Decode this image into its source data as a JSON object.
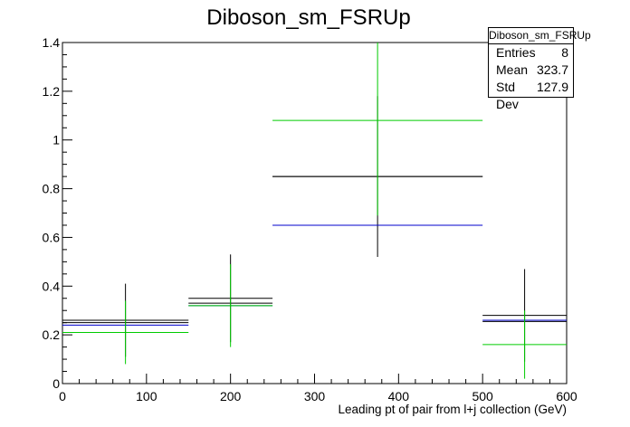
{
  "chart_data": {
    "type": "histogram",
    "title": "Diboson_sm_FSRUp",
    "xlabel": "Leading pt of pair from l+j collection (GeV)",
    "ylabel": "",
    "xlim": [
      0,
      600
    ],
    "ylim": [
      0,
      1.4
    ],
    "x_ticks": [
      0,
      100,
      200,
      300,
      400,
      500,
      600
    ],
    "y_ticks": [
      0,
      0.2,
      0.4,
      0.6,
      0.8,
      1,
      1.2,
      1.4
    ],
    "y_tick_labels": [
      "0",
      "0.2",
      "0.4",
      "0.6",
      "0.8",
      "1",
      "1.2",
      "1.4"
    ],
    "bins": [
      {
        "xlow": 0,
        "xhigh": 150,
        "center": 75
      },
      {
        "xlow": 150,
        "xhigh": 250,
        "center": 200
      },
      {
        "xlow": 250,
        "xhigh": 500,
        "center": 375
      },
      {
        "xlow": 500,
        "xhigh": 600,
        "center": 550
      }
    ],
    "series": [
      {
        "color": "#000000",
        "values": [
          0.26,
          0.35,
          0.85,
          0.28
        ],
        "errors": [
          0.15,
          0.18,
          0.33,
          0.19
        ]
      },
      {
        "color": "#000000",
        "values": [
          0.25,
          0.33,
          0.85,
          0.255
        ]
      },
      {
        "color": "#0000cc",
        "values": [
          0.24,
          0.32,
          0.65,
          0.26
        ]
      },
      {
        "color": "#00cc00",
        "values": [
          0.21,
          0.32,
          1.08,
          0.16
        ],
        "errors": [
          0.13,
          0.17,
          0.39,
          0.14
        ]
      }
    ],
    "stats": {
      "title": "Diboson_sm_FSRUp",
      "rows": [
        {
          "label": "Entries",
          "value": "8"
        },
        {
          "label": "Mean",
          "value": "323.7"
        },
        {
          "label": "Std Dev",
          "value": "127.9"
        }
      ]
    }
  }
}
